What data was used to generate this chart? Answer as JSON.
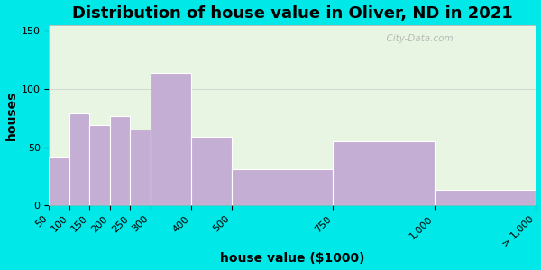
{
  "title": "Distribution of house value in Oliver, ND in 2021",
  "xlabel": "house value ($1000)",
  "ylabel": "houses",
  "bin_edges": [
    50,
    100,
    150,
    200,
    250,
    300,
    400,
    500,
    750,
    1000,
    1250
  ],
  "bar_values": [
    41,
    79,
    69,
    77,
    65,
    114,
    59,
    31,
    55,
    13
  ],
  "tick_positions": [
    50,
    100,
    150,
    200,
    250,
    300,
    400,
    500,
    750,
    1000,
    1250
  ],
  "tick_labels": [
    "50",
    "100",
    "150",
    "200",
    "250",
    "300",
    "400",
    "500",
    "750",
    "1,000",
    "> 1,000"
  ],
  "bar_color": "#c4aed4",
  "bar_edgecolor": "#ffffff",
  "ylim": [
    0,
    155
  ],
  "yticks": [
    0,
    50,
    100,
    150
  ],
  "bg_outer": "#00e8e8",
  "bg_plot": "#e8f5e2",
  "watermark": "  City-Data.com",
  "title_fontsize": 13,
  "axis_label_fontsize": 10,
  "tick_fontsize": 8
}
